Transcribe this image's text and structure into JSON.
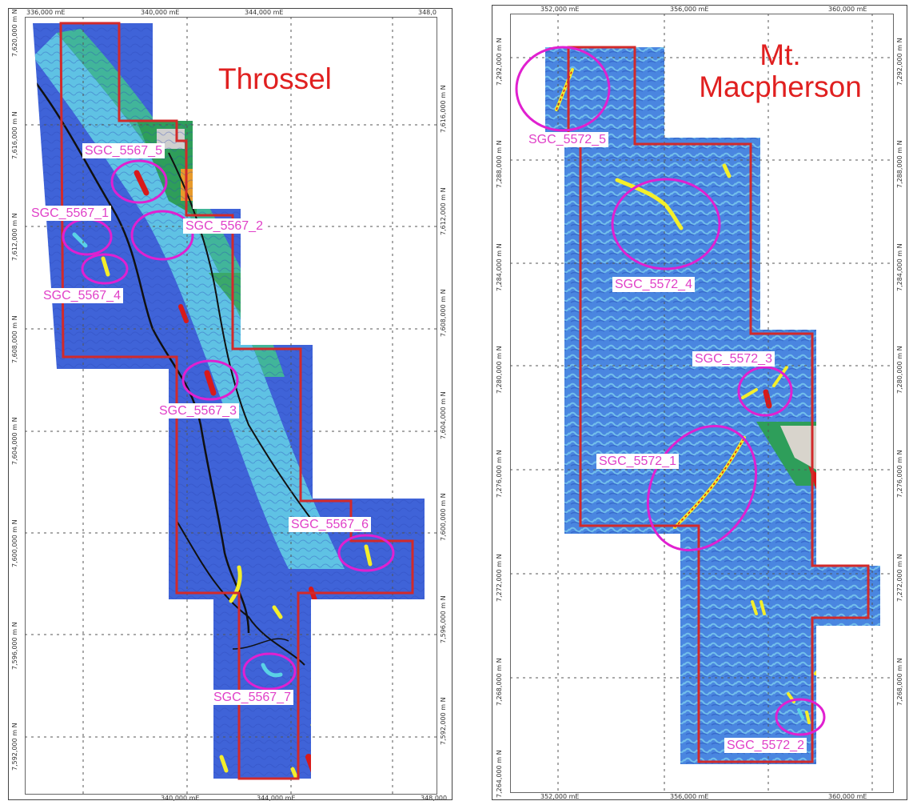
{
  "maps": {
    "left": {
      "title": "Throssel",
      "x_ticks_top": [
        "336,000 mE",
        "340,000 mE",
        "344,000 mE",
        "348,0"
      ],
      "x_ticks_bottom": [
        "340,000 mE",
        "344,000 mE",
        "348,000"
      ],
      "y_ticks_left": [
        "7,620,000 m N",
        "7,616,000 m N",
        "7,612,000 m N",
        "7,608,000 m N",
        "7,604,000 m N",
        "7,600,000 m N",
        "7,596,000 m N",
        "7,592,000 m N"
      ],
      "y_ticks_right": [
        "7,616,000 m N",
        "7,612,000 m N",
        "7,608,000 m N",
        "7,604,000 m N",
        "7,600,000 m N",
        "7,596,000 m N",
        "7,592,000 m N"
      ],
      "targets": [
        "SGC_5567_5",
        "SGC_5567_1",
        "SGC_5567_2",
        "SGC_5567_4",
        "SGC_5567_3",
        "SGC_5567_6",
        "SGC_5567_7"
      ]
    },
    "right": {
      "title_line1": "Mt.",
      "title_line2": "Macpherson",
      "x_ticks_top": [
        "352,000 mE",
        "356,000 mE",
        "360,000 mE"
      ],
      "x_ticks_bottom": [
        "352,000 mE",
        "356,000 mE",
        "360,000 mE"
      ],
      "y_ticks_left": [
        "7,292,000 m N",
        "7,288,000 m N",
        "7,284,000 m N",
        "7,280,000 m N",
        "7,276,000 m N",
        "7,272,000 m N",
        "7,268,000 m N",
        "7,264,000 m N"
      ],
      "y_ticks_right": [
        "7,292,000 m N",
        "7,288,000 m N",
        "7,284,000 m N",
        "7,280,000 m N",
        "7,276,000 m N",
        "7,272,000 m N",
        "7,268,000 m N"
      ],
      "targets": [
        "SGC_5572_5",
        "SGC_5572_4",
        "SGC_5572_3",
        "SGC_5572_1",
        "SGC_5572_2"
      ]
    }
  },
  "colors": {
    "tenement_outline": "#d22a2a",
    "target_circle": "#e020d0",
    "target_label": "#e040c8",
    "title": "#e02020",
    "survey_blue": "#3f6fe0",
    "survey_cyan": "#5ad2e6",
    "anomaly_yellow": "#f4ee2a",
    "anomaly_red": "#d81a1a",
    "structure_line": "#111111"
  }
}
